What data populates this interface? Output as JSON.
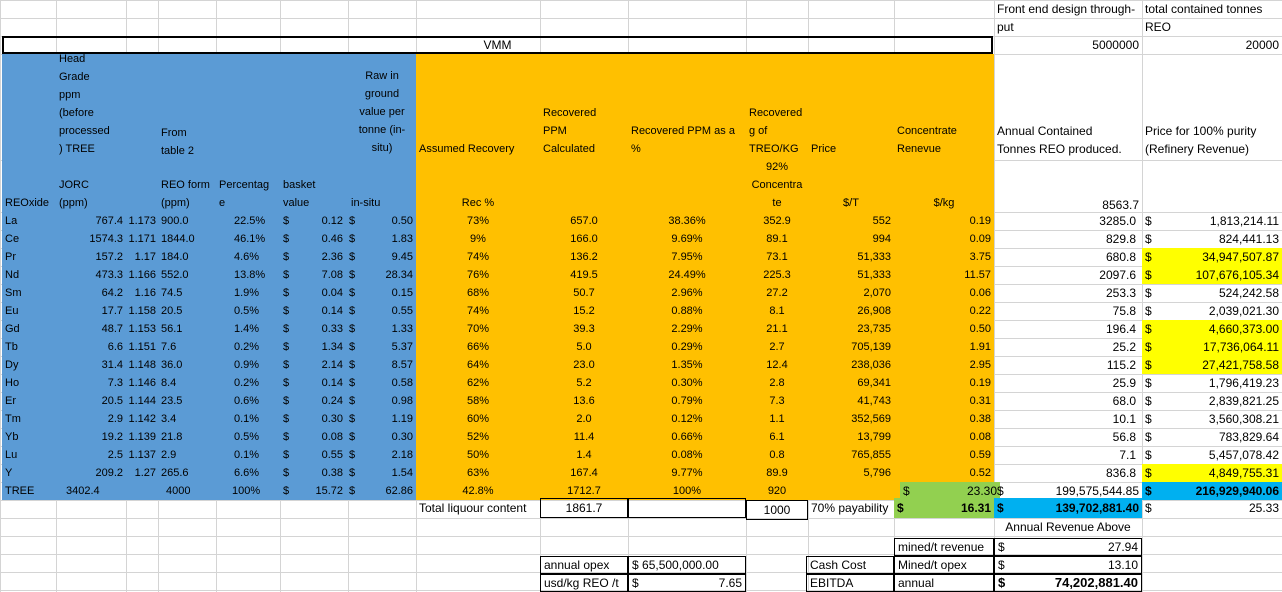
{
  "top": {
    "front_end_label": "Front end design through-\nput",
    "total_contained_label": "total contained tonnes\nREO",
    "front_end_value": "5000000",
    "total_contained_value": "20000",
    "vmm_title": "VMM"
  },
  "headers": {
    "head_grade": "Head\nGrade\nppm\n(before\nprocessed\n) TREE",
    "from_table": "From\ntable 2",
    "raw_value": "Raw in\nground\nvalue per\ntonne (in-\nsitu)",
    "assumed_recovery": "Assumed Recovery",
    "recovered_ppm": "Recovered\nPPM\nCalculated",
    "recovered_ppm_pct": "Recovered PPM as a\n%",
    "recovered_g": "Recovered\ng of\nTREO/KG",
    "price": "Price",
    "concentrate": "Concentrate\nRenevue",
    "annual_contained": "Annual Contained\nTonnes REO produced.",
    "price_100": "Price for 100% purity\n(Refinery Revenue)",
    "reoxide": "REOxide",
    "jorc": "JORC\n(ppm)",
    "reo_form": "REO form\n(ppm)",
    "percentage": "Percentag\ne",
    "basket": "basket\nvalue",
    "in_situ": "in-situ",
    "rec_pct": "Rec %",
    "concentrate_92": "92%\nConcentra\nte",
    "price_unit": "$/T",
    "conc_unit": "$/kg",
    "annual_top": "8563.7"
  },
  "rows": [
    {
      "el": "La",
      "jorc": "767.4",
      "f": "1.173",
      "reo": "900.0",
      "pct": "22.5%",
      "bv": "0.12",
      "insitu": "0.50",
      "rec": "73%",
      "rppm": "657.0",
      "rpct": "38.36%",
      "g": "352.9",
      "price": "552",
      "conc": "0.19",
      "annual": "3285.0",
      "refine": "1,813,214.11",
      "hl": false
    },
    {
      "el": "Ce",
      "jorc": "1574.3",
      "f": "1.171",
      "reo": "1844.0",
      "pct": "46.1%",
      "bv": "0.46",
      "insitu": "1.83",
      "rec": "9%",
      "rppm": "166.0",
      "rpct": "9.69%",
      "g": "89.1",
      "price": "994",
      "conc": "0.09",
      "annual": "829.8",
      "refine": "824,441.13",
      "hl": false
    },
    {
      "el": "Pr",
      "jorc": "157.2",
      "f": "1.17",
      "reo": "184.0",
      "pct": "4.6%",
      "bv": "2.36",
      "insitu": "9.45",
      "rec": "74%",
      "rppm": "136.2",
      "rpct": "7.95%",
      "g": "73.1",
      "price": "51,333",
      "conc": "3.75",
      "annual": "680.8",
      "refine": "34,947,507.87",
      "hl": true
    },
    {
      "el": "Nd",
      "jorc": "473.3",
      "f": "1.166",
      "reo": "552.0",
      "pct": "13.8%",
      "bv": "7.08",
      "insitu": "28.34",
      "rec": "76%",
      "rppm": "419.5",
      "rpct": "24.49%",
      "g": "225.3",
      "price": "51,333",
      "conc": "11.57",
      "annual": "2097.6",
      "refine": "107,676,105.34",
      "hl": true
    },
    {
      "el": "Sm",
      "jorc": "64.2",
      "f": "1.16",
      "reo": "74.5",
      "pct": "1.9%",
      "bv": "0.04",
      "insitu": "0.15",
      "rec": "68%",
      "rppm": "50.7",
      "rpct": "2.96%",
      "g": "27.2",
      "price": "2,070",
      "conc": "0.06",
      "annual": "253.3",
      "refine": "524,242.58",
      "hl": false
    },
    {
      "el": "Eu",
      "jorc": "17.7",
      "f": "1.158",
      "reo": "20.5",
      "pct": "0.5%",
      "bv": "0.14",
      "insitu": "0.55",
      "rec": "74%",
      "rppm": "15.2",
      "rpct": "0.88%",
      "g": "8.1",
      "price": "26,908",
      "conc": "0.22",
      "annual": "75.8",
      "refine": "2,039,021.30",
      "hl": false
    },
    {
      "el": "Gd",
      "jorc": "48.7",
      "f": "1.153",
      "reo": "56.1",
      "pct": "1.4%",
      "bv": "0.33",
      "insitu": "1.33",
      "rec": "70%",
      "rppm": "39.3",
      "rpct": "2.29%",
      "g": "21.1",
      "price": "23,735",
      "conc": "0.50",
      "annual": "196.4",
      "refine": "4,660,373.00",
      "hl": true
    },
    {
      "el": "Tb",
      "jorc": "6.6",
      "f": "1.151",
      "reo": "7.6",
      "pct": "0.2%",
      "bv": "1.34",
      "insitu": "5.37",
      "rec": "66%",
      "rppm": "5.0",
      "rpct": "0.29%",
      "g": "2.7",
      "price": "705,139",
      "conc": "1.91",
      "annual": "25.2",
      "refine": "17,736,064.11",
      "hl": true
    },
    {
      "el": "Dy",
      "jorc": "31.4",
      "f": "1.148",
      "reo": "36.0",
      "pct": "0.9%",
      "bv": "2.14",
      "insitu": "8.57",
      "rec": "64%",
      "rppm": "23.0",
      "rpct": "1.35%",
      "g": "12.4",
      "price": "238,036",
      "conc": "2.95",
      "annual": "115.2",
      "refine": "27,421,758.58",
      "hl": true
    },
    {
      "el": "Ho",
      "jorc": "7.3",
      "f": "1.146",
      "reo": "8.4",
      "pct": "0.2%",
      "bv": "0.14",
      "insitu": "0.58",
      "rec": "62%",
      "rppm": "5.2",
      "rpct": "0.30%",
      "g": "2.8",
      "price": "69,341",
      "conc": "0.19",
      "annual": "25.9",
      "refine": "1,796,419.23",
      "hl": false
    },
    {
      "el": "Er",
      "jorc": "20.5",
      "f": "1.144",
      "reo": "23.5",
      "pct": "0.6%",
      "bv": "0.24",
      "insitu": "0.98",
      "rec": "58%",
      "rppm": "13.6",
      "rpct": "0.79%",
      "g": "7.3",
      "price": "41,743",
      "conc": "0.31",
      "annual": "68.0",
      "refine": "2,839,821.25",
      "hl": false
    },
    {
      "el": "Tm",
      "jorc": "2.9",
      "f": "1.142",
      "reo": "3.4",
      "pct": "0.1%",
      "bv": "0.30",
      "insitu": "1.19",
      "rec": "60%",
      "rppm": "2.0",
      "rpct": "0.12%",
      "g": "1.1",
      "price": "352,569",
      "conc": "0.38",
      "annual": "10.1",
      "refine": "3,560,308.21",
      "hl": false
    },
    {
      "el": "Yb",
      "jorc": "19.2",
      "f": "1.139",
      "reo": "21.8",
      "pct": "0.5%",
      "bv": "0.08",
      "insitu": "0.30",
      "rec": "52%",
      "rppm": "11.4",
      "rpct": "0.66%",
      "g": "6.1",
      "price": "13,799",
      "conc": "0.08",
      "annual": "56.8",
      "refine": "783,829.64",
      "hl": false
    },
    {
      "el": "Lu",
      "jorc": "2.5",
      "f": "1.137",
      "reo": "2.9",
      "pct": "0.1%",
      "bv": "0.55",
      "insitu": "2.18",
      "rec": "50%",
      "rppm": "1.4",
      "rpct": "0.08%",
      "g": "0.8",
      "price": "765,855",
      "conc": "0.59",
      "annual": "7.1",
      "refine": "5,457,078.42",
      "hl": false
    },
    {
      "el": "Y",
      "jorc": "209.2",
      "f": "1.27",
      "reo": "265.6",
      "pct": "6.6%",
      "bv": "0.38",
      "insitu": "1.54",
      "rec": "63%",
      "rppm": "167.4",
      "rpct": "9.77%",
      "g": "89.9",
      "price": "5,796",
      "conc": "0.52",
      "annual": "836.8",
      "refine": "4,849,755.31",
      "hl": true
    }
  ],
  "tree": {
    "el": "TREE",
    "jorc": "3402.4",
    "reo": "4000",
    "pct": "100%",
    "bv": "15.72",
    "insitu": "62.86",
    "rec": "42.8%",
    "rppm": "1712.7",
    "rpct": "100%",
    "g": "920",
    "conc": "23.30",
    "annual": "199,575,544.85",
    "refine": "216,929,940.06"
  },
  "summary": {
    "liquour_label": "Total liquour content",
    "liquour_value": "1861.7",
    "g_1000": "1000",
    "payability_label": "70% payability",
    "payability_value": "16.31",
    "annual_rev_value": "139,702,881.40",
    "refine_per": "25.33",
    "annual_rev_above": "Annual Revenue Above",
    "opex_label": "annual opex",
    "opex_value": "65,500,000.00",
    "usdkg_label": "usd/kg REO /t",
    "usdkg_value": "7.65",
    "cash_cost": "Cash Cost",
    "ebitda": "EBITDA",
    "mined_rev_label": "mined/t revenue",
    "mined_rev_value": "27.94",
    "mined_opex_label": "Mined/t opex",
    "mined_opex_value": "13.10",
    "annual_label": "annual",
    "annual_value": "74,202,881.40",
    "dollar": "$"
  },
  "colors": {
    "blue": "#5b9bd5",
    "orange": "#ffc000",
    "yellow": "#ffff00",
    "green": "#92d050",
    "cyan": "#00b0f0"
  }
}
